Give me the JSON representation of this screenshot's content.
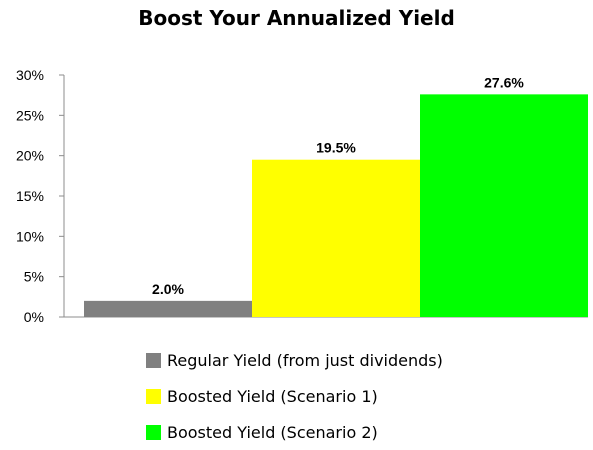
{
  "chart_data": {
    "type": "bar",
    "title": "Boost Your Annualized Yield",
    "categories": [
      "Regular Yield (from just dividends)",
      "Boosted Yield (Scenario 1)",
      "Boosted Yield (Scenario 2)"
    ],
    "values": [
      2.0,
      19.5,
      27.6
    ],
    "data_labels": [
      "2.0%",
      "19.5%",
      "27.6%"
    ],
    "colors": [
      "#808080",
      "#ffff00",
      "#00ff00"
    ],
    "ylim": [
      0,
      30
    ],
    "yticks": [
      0,
      5,
      10,
      15,
      20,
      25,
      30
    ],
    "ytick_labels": [
      "0%",
      "5%",
      "10%",
      "15%",
      "20%",
      "25%",
      "30%"
    ],
    "grid": false,
    "legend_position": "bottom"
  }
}
